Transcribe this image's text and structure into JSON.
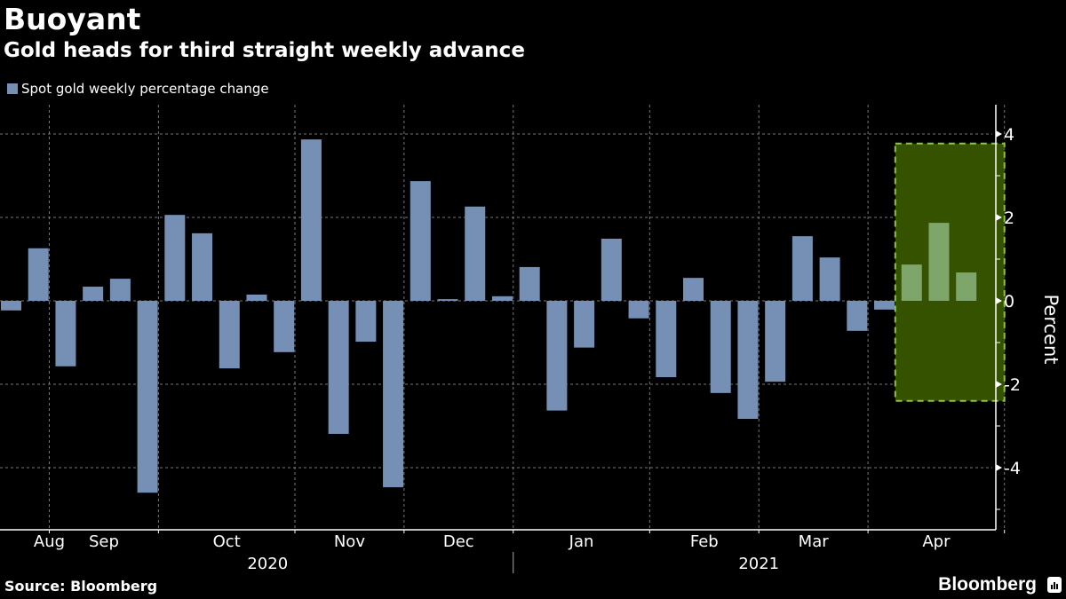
{
  "header": {
    "title": "Buoyant",
    "subtitle": "Gold heads for third straight weekly advance"
  },
  "footer": {
    "source": "Source: Bloomberg",
    "brand": "Bloomberg",
    "brand_icon": "bloomberg-chart-icon"
  },
  "colors": {
    "background": "#000000",
    "bar": "#7590b4",
    "bar_highlight": "#7ea66a",
    "highlight_fill": "#345200",
    "highlight_border": "#8cc63f",
    "grid": "#777777",
    "axis": "#ffffff"
  },
  "chart_data": {
    "type": "bar",
    "title": "Buoyant",
    "subtitle": "Gold heads for third straight weekly advance",
    "legend": [
      {
        "name": "Spot gold weekly percentage change",
        "color": "#7590b4"
      }
    ],
    "legend_position": "top-left",
    "xlabel": "",
    "ylabel": "Percent",
    "ylim": [
      -5.3,
      4.7
    ],
    "yticks": [
      4,
      2,
      0,
      -2,
      -4
    ],
    "grid": true,
    "x_month_labels": [
      {
        "label": "Aug",
        "week": 1.4
      },
      {
        "label": "Sep",
        "week": 3.4
      },
      {
        "label": "Oct",
        "week": 7.9
      },
      {
        "label": "Nov",
        "week": 12.4
      },
      {
        "label": "Dec",
        "week": 16.4
      },
      {
        "label": "Jan",
        "week": 20.9
      },
      {
        "label": "Feb",
        "week": 25.4
      },
      {
        "label": "Mar",
        "week": 29.4
      },
      {
        "label": "Apr",
        "week": 33.9
      }
    ],
    "x_month_boundaries": [
      1.4,
      5.4,
      10.4,
      14.4,
      18.4,
      23.4,
      27.4,
      31.4,
      36.4
    ],
    "x_year_labels": [
      {
        "label": "2020",
        "week": 9.4
      },
      {
        "label": "2021",
        "week": 27.4
      }
    ],
    "year_divider_week": 18.4,
    "series": [
      {
        "name": "Spot gold weekly percentage change",
        "values": [
          -0.23,
          1.26,
          -1.57,
          0.34,
          0.53,
          -4.6,
          2.06,
          1.62,
          -1.62,
          0.15,
          -1.23,
          3.87,
          -3.19,
          -0.98,
          -4.47,
          2.87,
          0.04,
          2.26,
          0.11,
          0.81,
          -2.63,
          -1.12,
          1.49,
          -0.42,
          -1.83,
          0.55,
          -2.21,
          -2.83,
          -1.94,
          1.55,
          1.04,
          -0.72,
          -0.21,
          0.87,
          1.87,
          0.68
        ]
      }
    ],
    "highlight": {
      "description": "Last three weeks (third straight weekly advance)",
      "from_week": 32.4,
      "to_week": 36.4,
      "y_top": 3.77,
      "y_bottom": -2.4,
      "highlighted_bar_indices": [
        33,
        34,
        35
      ]
    }
  }
}
